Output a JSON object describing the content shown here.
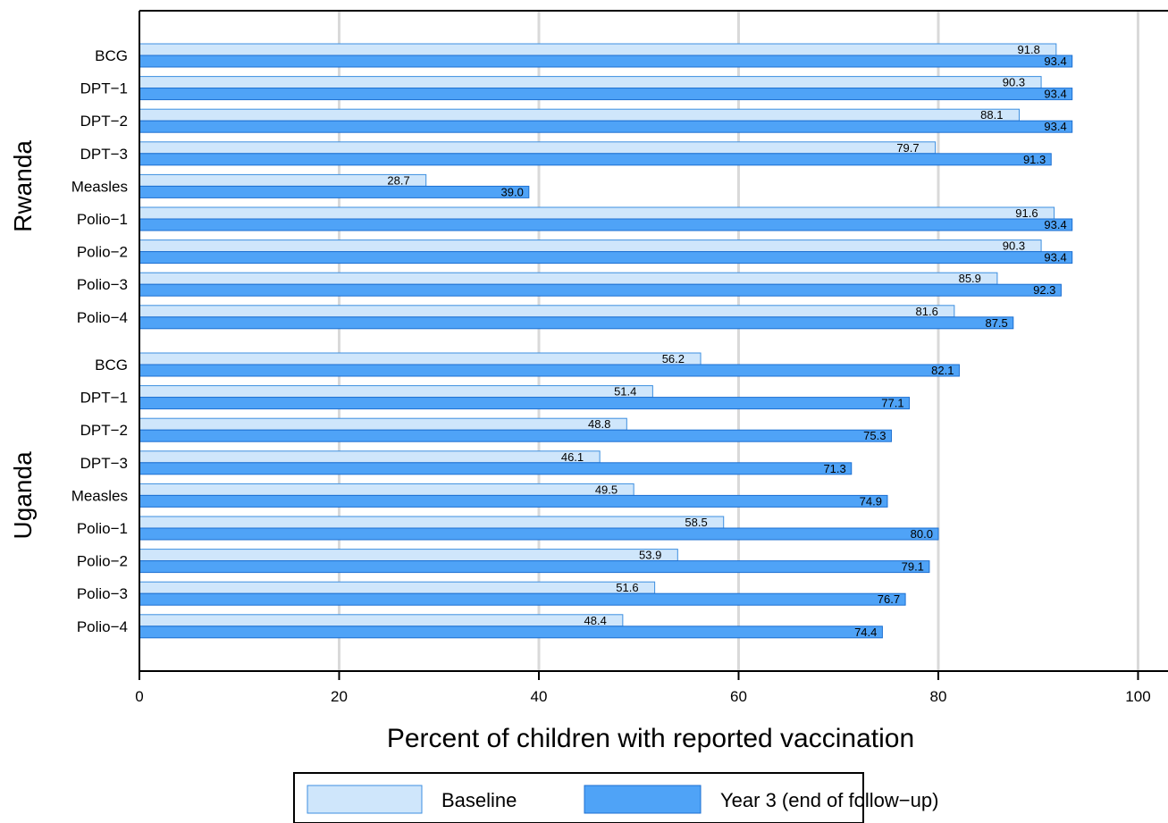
{
  "chart_data": {
    "type": "bar",
    "orientation": "horizontal",
    "xlabel": "Percent of children with reported vaccination",
    "xlim": [
      0,
      103
    ],
    "xticks": [
      0,
      20,
      40,
      60,
      80,
      100
    ],
    "grid": "vertical",
    "legend_position": "bottom",
    "series": [
      {
        "name": "Baseline",
        "color": "#cfe6fb",
        "stroke": "#3d8fe0"
      },
      {
        "name": "Year 3 (end of follow−up)",
        "color": "#4fa3f7",
        "stroke": "#1c6fd1"
      }
    ],
    "groups": [
      {
        "name": "Rwanda",
        "categories": [
          "BCG",
          "DPT−1",
          "DPT−2",
          "DPT−3",
          "Measles",
          "Polio−1",
          "Polio−2",
          "Polio−3",
          "Polio−4"
        ],
        "baseline": [
          91.8,
          90.3,
          88.1,
          79.7,
          28.7,
          91.6,
          90.3,
          85.9,
          81.6
        ],
        "year3": [
          93.4,
          93.4,
          93.4,
          91.3,
          39.0,
          93.4,
          93.4,
          92.3,
          87.5
        ]
      },
      {
        "name": "Uganda",
        "categories": [
          "BCG",
          "DPT−1",
          "DPT−2",
          "DPT−3",
          "Measles",
          "Polio−1",
          "Polio−2",
          "Polio−3",
          "Polio−4"
        ],
        "baseline": [
          56.2,
          51.4,
          48.8,
          46.1,
          49.5,
          58.5,
          53.9,
          51.6,
          48.4
        ],
        "year3": [
          82.1,
          77.1,
          75.3,
          71.3,
          74.9,
          80.0,
          79.1,
          76.7,
          74.4
        ]
      }
    ]
  }
}
